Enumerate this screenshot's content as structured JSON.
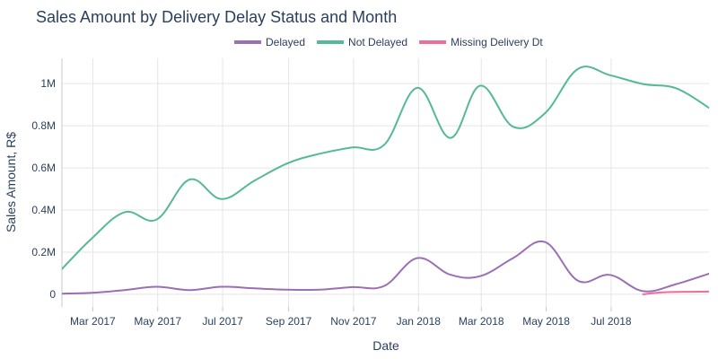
{
  "chart_data": {
    "type": "line",
    "title": "Sales Amount by Delivery Delay Status and Month",
    "xlabel": "Date",
    "ylabel": "Sales Amount, R$",
    "xlim": [
      "2017-01-31",
      "2018-10-01"
    ],
    "ylim": [
      -60000,
      1120000
    ],
    "legend_position": "top-center",
    "x_ticks": [
      {
        "date": "2017-03-01",
        "label": "Mar 2017"
      },
      {
        "date": "2017-05-01",
        "label": "May 2017"
      },
      {
        "date": "2017-07-01",
        "label": "Jul 2017"
      },
      {
        "date": "2017-09-01",
        "label": "Sep 2017"
      },
      {
        "date": "2017-11-01",
        "label": "Nov 2017"
      },
      {
        "date": "2018-01-01",
        "label": "Jan 2018"
      },
      {
        "date": "2018-03-01",
        "label": "Mar 2018"
      },
      {
        "date": "2018-05-01",
        "label": "May 2018"
      },
      {
        "date": "2018-07-01",
        "label": "Jul 2018"
      }
    ],
    "y_ticks": [
      {
        "value": 0,
        "label": "0"
      },
      {
        "value": 200000,
        "label": "0.2M"
      },
      {
        "value": 400000,
        "label": "0.4M"
      },
      {
        "value": 600000,
        "label": "0.6M"
      },
      {
        "value": 800000,
        "label": "0.8M"
      },
      {
        "value": 1000000,
        "label": "1M"
      }
    ],
    "series": [
      {
        "name": "Delayed",
        "color": "#9b6fb5",
        "points": [
          [
            "2017-01-31",
            3000
          ],
          [
            "2017-02-28",
            7000
          ],
          [
            "2017-03-31",
            20000
          ],
          [
            "2017-04-30",
            36000
          ],
          [
            "2017-05-31",
            20000
          ],
          [
            "2017-06-30",
            36000
          ],
          [
            "2017-07-31",
            28000
          ],
          [
            "2017-08-31",
            22000
          ],
          [
            "2017-09-30",
            22000
          ],
          [
            "2017-10-31",
            34000
          ],
          [
            "2017-11-30",
            40000
          ],
          [
            "2017-12-31",
            172000
          ],
          [
            "2018-01-31",
            93000
          ],
          [
            "2018-02-28",
            86000
          ],
          [
            "2018-03-31",
            172000
          ],
          [
            "2018-04-30",
            248000
          ],
          [
            "2018-05-31",
            64000
          ],
          [
            "2018-06-30",
            92000
          ],
          [
            "2018-07-31",
            15000
          ],
          [
            "2018-08-31",
            48000
          ],
          [
            "2018-10-01",
            98000
          ]
        ]
      },
      {
        "name": "Not Delayed",
        "color": "#55b997",
        "points": [
          [
            "2017-01-31",
            120000
          ],
          [
            "2017-02-28",
            265000
          ],
          [
            "2017-03-31",
            390000
          ],
          [
            "2017-04-30",
            355000
          ],
          [
            "2017-05-31",
            545000
          ],
          [
            "2017-06-30",
            452000
          ],
          [
            "2017-07-31",
            540000
          ],
          [
            "2017-08-31",
            622000
          ],
          [
            "2017-09-30",
            667000
          ],
          [
            "2017-10-31",
            697000
          ],
          [
            "2017-11-30",
            710000
          ],
          [
            "2017-12-31",
            980000
          ],
          [
            "2018-01-31",
            742000
          ],
          [
            "2018-02-28",
            990000
          ],
          [
            "2018-03-31",
            795000
          ],
          [
            "2018-04-30",
            860000
          ],
          [
            "2018-05-31",
            1070000
          ],
          [
            "2018-06-30",
            1040000
          ],
          [
            "2018-07-31",
            998000
          ],
          [
            "2018-08-31",
            978000
          ],
          [
            "2018-10-01",
            885000
          ]
        ]
      },
      {
        "name": "Missing Delivery Dt",
        "color": "#ec6f9b",
        "points": [
          [
            "2018-07-31",
            0
          ],
          [
            "2018-08-15",
            8000
          ],
          [
            "2018-09-01",
            11000
          ],
          [
            "2018-10-01",
            13000
          ]
        ]
      }
    ]
  }
}
